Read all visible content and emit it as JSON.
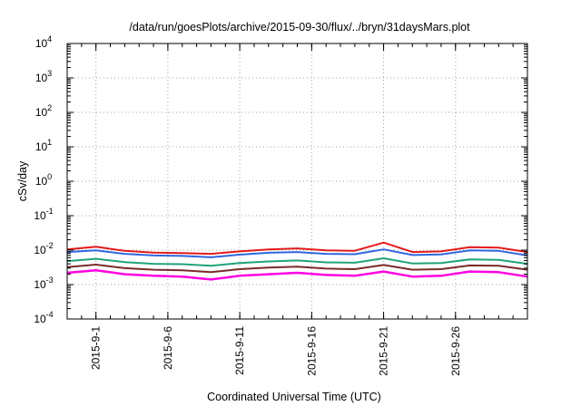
{
  "chart_data": {
    "type": "line",
    "title": "/data/run/goesPlots/archive/2015-09-30/flux/../bryn/31daysMars.plot",
    "xlabel": "Coordinated Universal Time (UTC)",
    "ylabel": "cSv/day",
    "y_scale": "log",
    "ylim": [
      0.0001,
      10000
    ],
    "xlim": [
      "2015-08-30",
      "2015-10-01"
    ],
    "grid": true,
    "legend": "none",
    "x_ticks": [
      {
        "date": "2015-09-01",
        "label": "2015-9-1"
      },
      {
        "date": "2015-09-06",
        "label": "2015-9-6"
      },
      {
        "date": "2015-09-11",
        "label": "2015-9-11"
      },
      {
        "date": "2015-09-16",
        "label": "2015-9-16"
      },
      {
        "date": "2015-09-21",
        "label": "2015-9-21"
      },
      {
        "date": "2015-09-26",
        "label": "2015-9-26"
      }
    ],
    "y_ticks": [
      {
        "value": 0.0001,
        "base": "10",
        "exp": "-4"
      },
      {
        "value": 0.001,
        "base": "10",
        "exp": "-3"
      },
      {
        "value": 0.01,
        "base": "10",
        "exp": "-2"
      },
      {
        "value": 0.1,
        "base": "10",
        "exp": "-1"
      },
      {
        "value": 1,
        "base": "10",
        "exp": "0"
      },
      {
        "value": 10,
        "base": "10",
        "exp": "1"
      },
      {
        "value": 100,
        "base": "10",
        "exp": "2"
      },
      {
        "value": 1000,
        "base": "10",
        "exp": "3"
      },
      {
        "value": 10000,
        "base": "10",
        "exp": "4"
      }
    ],
    "x": [
      "2015-08-30",
      "2015-09-01",
      "2015-09-03",
      "2015-09-05",
      "2015-09-07",
      "2015-09-09",
      "2015-09-11",
      "2015-09-13",
      "2015-09-15",
      "2015-09-17",
      "2015-09-19",
      "2015-09-21",
      "2015-09-23",
      "2015-09-25",
      "2015-09-27",
      "2015-09-29",
      "2015-10-01"
    ],
    "series": [
      {
        "color": "#e41a1c",
        "values": [
          0.0105,
          0.0125,
          0.0095,
          0.0085,
          0.0082,
          0.0078,
          0.0092,
          0.0105,
          0.0112,
          0.0098,
          0.0096,
          0.0165,
          0.0088,
          0.0092,
          0.0122,
          0.0118,
          0.0088
        ]
      },
      {
        "color": "#2f66e0",
        "values": [
          0.0088,
          0.0098,
          0.0078,
          0.007,
          0.0068,
          0.0062,
          0.0074,
          0.0084,
          0.0088,
          0.0078,
          0.0076,
          0.0105,
          0.0072,
          0.0075,
          0.0098,
          0.0095,
          0.007
        ]
      },
      {
        "color": "#1fa37a",
        "values": [
          0.0048,
          0.0056,
          0.0045,
          0.004,
          0.0039,
          0.0035,
          0.0042,
          0.0047,
          0.005,
          0.0044,
          0.0043,
          0.0058,
          0.0041,
          0.0042,
          0.0054,
          0.0052,
          0.004
        ]
      },
      {
        "color": "#7a2a2a",
        "values": [
          0.0032,
          0.0038,
          0.003,
          0.0027,
          0.0026,
          0.0023,
          0.0028,
          0.0031,
          0.0033,
          0.0029,
          0.0028,
          0.0037,
          0.0027,
          0.0028,
          0.0036,
          0.0035,
          0.0027
        ]
      },
      {
        "color": "#ff00e0",
        "values": [
          0.0022,
          0.0026,
          0.002,
          0.0018,
          0.0017,
          0.0014,
          0.0018,
          0.002,
          0.0022,
          0.0019,
          0.0018,
          0.0024,
          0.0017,
          0.0018,
          0.0024,
          0.0023,
          0.0017
        ]
      }
    ]
  }
}
